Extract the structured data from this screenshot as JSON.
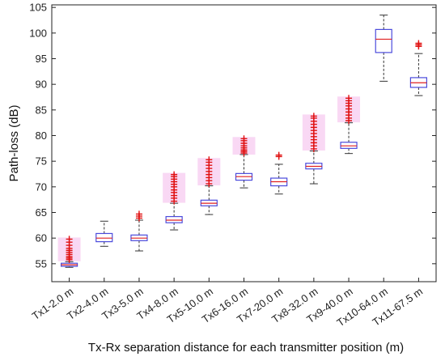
{
  "chart_data": {
    "type": "box",
    "xlabel": "Tx-Rx separation distance for each transmitter position (m)",
    "ylabel": "Path-loss (dB)",
    "ylim": [
      51.5,
      105.5
    ],
    "yticks": [
      55,
      60,
      65,
      70,
      75,
      80,
      85,
      90,
      95,
      100,
      105
    ],
    "grid": false,
    "colors": {
      "box": "#4b4bdc",
      "median": "#e02020",
      "whisker": "#333333",
      "outlier": "#e01010",
      "halo": "#f6c8f0"
    },
    "categories": [
      "Tx1-2.0 m",
      "Tx2-4.0 m",
      "Tx3-5.0 m",
      "Tx4-8.0 m",
      "Tx5-10.0 m",
      "Tx6-16.0 m",
      "Tx7-20.0 m",
      "Tx8-32.0 m",
      "Tx9-40.0 m",
      "Tx10-64.0 m",
      "Tx11-67.5 m"
    ],
    "boxes": [
      {
        "whislo": 54.3,
        "q1": 54.5,
        "med": 54.8,
        "q3": 55.1,
        "whishi": 55.4,
        "outliers": [
          55.8,
          56.1,
          56.4,
          56.8,
          57.2,
          57.6,
          58.0,
          58.6,
          59.2,
          59.8
        ]
      },
      {
        "whislo": 58.4,
        "q1": 59.3,
        "med": 60.0,
        "q3": 60.9,
        "whishi": 63.3,
        "outliers": []
      },
      {
        "whislo": 57.5,
        "q1": 59.5,
        "med": 60.0,
        "q3": 60.6,
        "whishi": 63.5,
        "outliers": [
          63.9,
          64.3,
          64.7
        ]
      },
      {
        "whislo": 61.6,
        "q1": 63.0,
        "med": 63.5,
        "q3": 64.2,
        "whishi": 66.8,
        "outliers": [
          67.2,
          67.8,
          68.3,
          68.9,
          69.4,
          70.0,
          70.5,
          71.0,
          71.5,
          72.0,
          72.4
        ]
      },
      {
        "whislo": 64.6,
        "q1": 66.3,
        "med": 66.8,
        "q3": 67.4,
        "whishi": 70.2,
        "outliers": [
          70.6,
          71.2,
          71.8,
          72.4,
          73.0,
          73.6,
          74.2,
          74.8,
          75.3
        ]
      },
      {
        "whislo": 69.8,
        "q1": 71.3,
        "med": 72.0,
        "q3": 72.6,
        "whishi": 76.3,
        "outliers": [
          76.6,
          76.9,
          77.2,
          77.6,
          78.0,
          78.5,
          79.0,
          79.4
        ]
      },
      {
        "whislo": 68.6,
        "q1": 70.2,
        "med": 71.0,
        "q3": 71.7,
        "whishi": 74.4,
        "outliers": [
          75.9,
          76.2
        ]
      },
      {
        "whislo": 70.6,
        "q1": 73.5,
        "med": 74.0,
        "q3": 74.6,
        "whishi": 77.0,
        "outliers": [
          77.4,
          78.0,
          78.6,
          79.2,
          79.8,
          80.4,
          81.0,
          81.6,
          82.2,
          82.8,
          83.4,
          83.8
        ]
      },
      {
        "whislo": 76.5,
        "q1": 77.5,
        "med": 78.0,
        "q3": 78.7,
        "whishi": 82.5,
        "outliers": [
          82.9,
          83.4,
          84.0,
          84.6,
          85.2,
          85.8,
          86.3,
          86.8,
          87.3
        ]
      },
      {
        "whislo": 90.6,
        "q1": 96.2,
        "med": 98.8,
        "q3": 100.7,
        "whishi": 103.5,
        "outliers": []
      },
      {
        "whislo": 87.8,
        "q1": 89.4,
        "med": 90.3,
        "q3": 91.3,
        "whishi": 96.0,
        "outliers": [
          97.4,
          97.7,
          98.0
        ]
      }
    ]
  }
}
